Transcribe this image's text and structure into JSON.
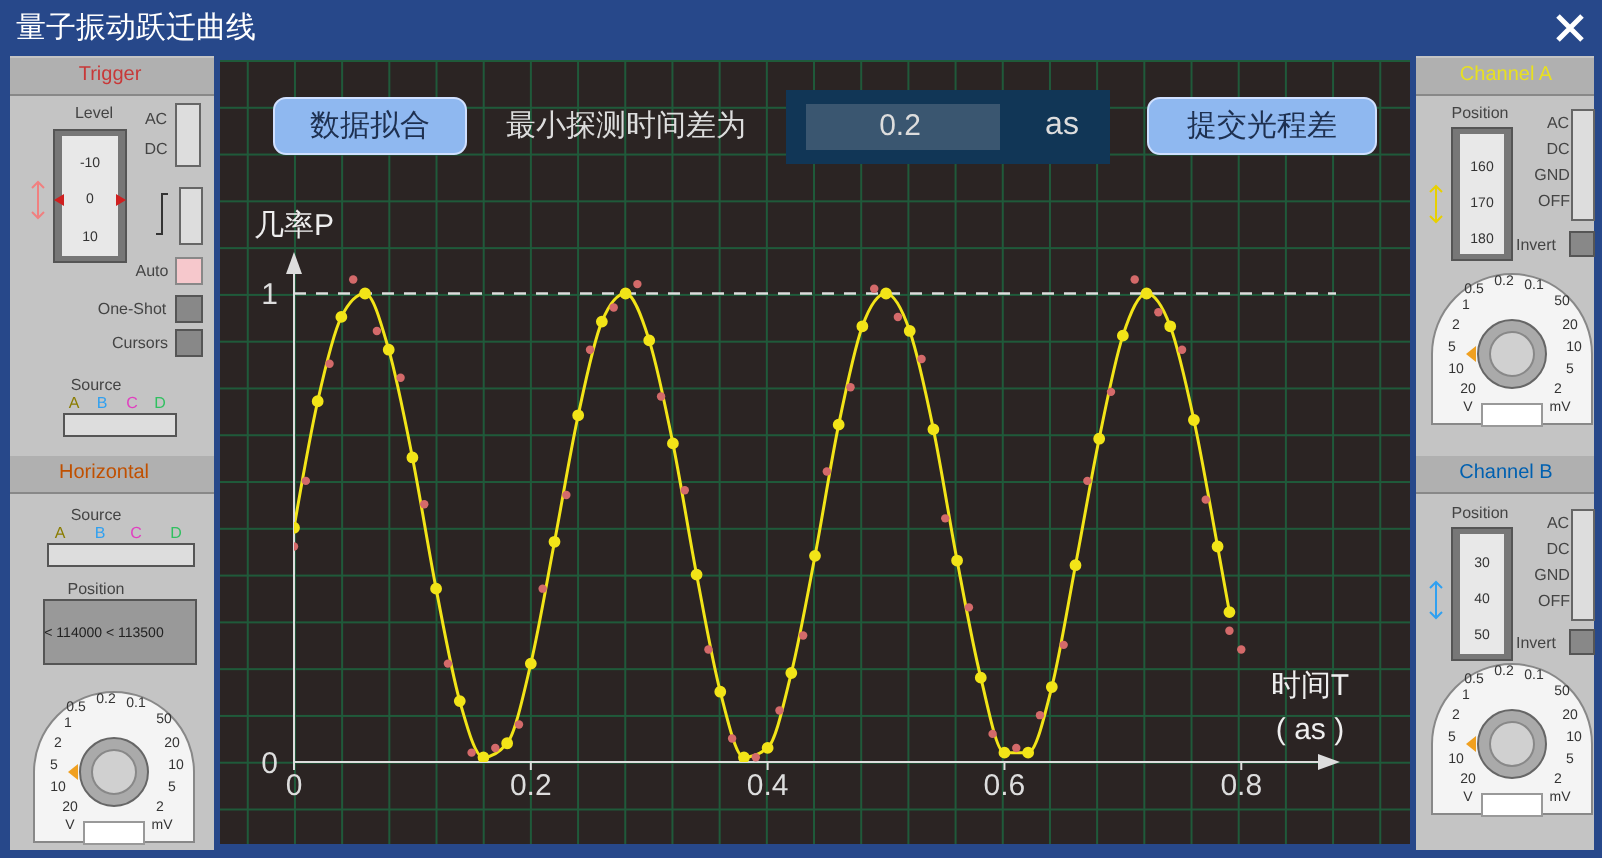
{
  "chart_data": {
    "type": "line",
    "title": "量子振动跃迁曲线",
    "xlabel": "时间T\n( as )",
    "ylabel": "几率P",
    "xlim": [
      0,
      0.88
    ],
    "xticks": [
      0,
      0.2,
      0.4,
      0.6,
      0.8
    ],
    "ylim": [
      0,
      1.08
    ],
    "yticks": [
      0,
      1
    ],
    "series": [
      {
        "type": "line",
        "color": "#f2e418",
        "marker": "circle",
        "line_style": "solid",
        "x": [
          0,
          0.02,
          0.04,
          0.06,
          0.08,
          0.1,
          0.12,
          0.14,
          0.16,
          0.18,
          0.2,
          0.22,
          0.24,
          0.26,
          0.28,
          0.3,
          0.32,
          0.34,
          0.36,
          0.38,
          0.4,
          0.42,
          0.44,
          0.46,
          0.48,
          0.5,
          0.52,
          0.54,
          0.56,
          0.58,
          0.6,
          0.62,
          0.64,
          0.66,
          0.68,
          0.7,
          0.72,
          0.74,
          0.76,
          0.78,
          0.79
        ],
        "values": [
          0.5,
          0.77,
          0.95,
          1,
          0.88,
          0.65,
          0.37,
          0.13,
          0.01,
          0.04,
          0.21,
          0.47,
          0.74,
          0.94,
          1,
          0.9,
          0.68,
          0.4,
          0.15,
          0.01,
          0.03,
          0.19,
          0.44,
          0.72,
          0.93,
          1,
          0.92,
          0.71,
          0.43,
          0.18,
          0.02,
          0.02,
          0.16,
          0.42,
          0.69,
          0.91,
          1,
          0.93,
          0.73,
          0.46,
          0.32
        ]
      },
      {
        "type": "scatter",
        "color": "#d46a6a",
        "marker": "circle",
        "x": [
          0,
          0.01,
          0.03,
          0.05,
          0.07,
          0.09,
          0.11,
          0.13,
          0.15,
          0.17,
          0.19,
          0.21,
          0.23,
          0.25,
          0.27,
          0.29,
          0.31,
          0.33,
          0.35,
          0.37,
          0.39,
          0.41,
          0.43,
          0.45,
          0.47,
          0.49,
          0.51,
          0.53,
          0.55,
          0.57,
          0.59,
          0.61,
          0.63,
          0.65,
          0.67,
          0.69,
          0.71,
          0.73,
          0.75,
          0.77,
          0.79,
          0.8
        ],
        "values": [
          0.46,
          0.6,
          0.85,
          1.03,
          0.92,
          0.82,
          0.55,
          0.21,
          0.02,
          0.03,
          0.08,
          0.37,
          0.57,
          0.88,
          0.97,
          1.02,
          0.78,
          0.58,
          0.24,
          0.05,
          0.01,
          0.11,
          0.27,
          0.62,
          0.8,
          1.01,
          0.95,
          0.86,
          0.52,
          0.33,
          0.06,
          0.03,
          0.1,
          0.25,
          0.6,
          0.79,
          1.03,
          0.96,
          0.88,
          0.56,
          0.28,
          0.24
        ]
      }
    ],
    "ref_lines": [
      {
        "axis": "y",
        "value": 1,
        "color": "#dddddd",
        "line_style": "dashed"
      }
    ],
    "annotations": [
      "数据拟合",
      "最小探测时间差为",
      "0.2",
      "as",
      "提交光程差",
      "Trigger",
      "Level",
      "-10",
      "0",
      "10",
      "AC",
      "DC",
      "Auto",
      "One-Shot",
      "Cursors",
      "Source",
      "A",
      "B",
      "C",
      "D",
      "Horizontal",
      "Source",
      "A",
      "B",
      "C",
      "D",
      "Position",
      "< 114000 < 113500",
      "0.5 0.2 0.1 1 2 5 10 20 V 50 20 10 5 2 mV",
      "Channel A",
      "Position",
      "160",
      "170",
      "180",
      "AC",
      "DC",
      "GND",
      "OFF",
      "Invert",
      "0.5 0.2 0.1 1 2 5 10 20 V 50 20 10 5 2 mV",
      "Channel B",
      "Position",
      "30",
      "40",
      "50",
      "AC",
      "DC",
      "GND",
      "OFF",
      "Invert",
      "0.5 0.2 0.1 1 2 5 10 20 V 50 20 10 5 2 mV"
    ]
  }
}
